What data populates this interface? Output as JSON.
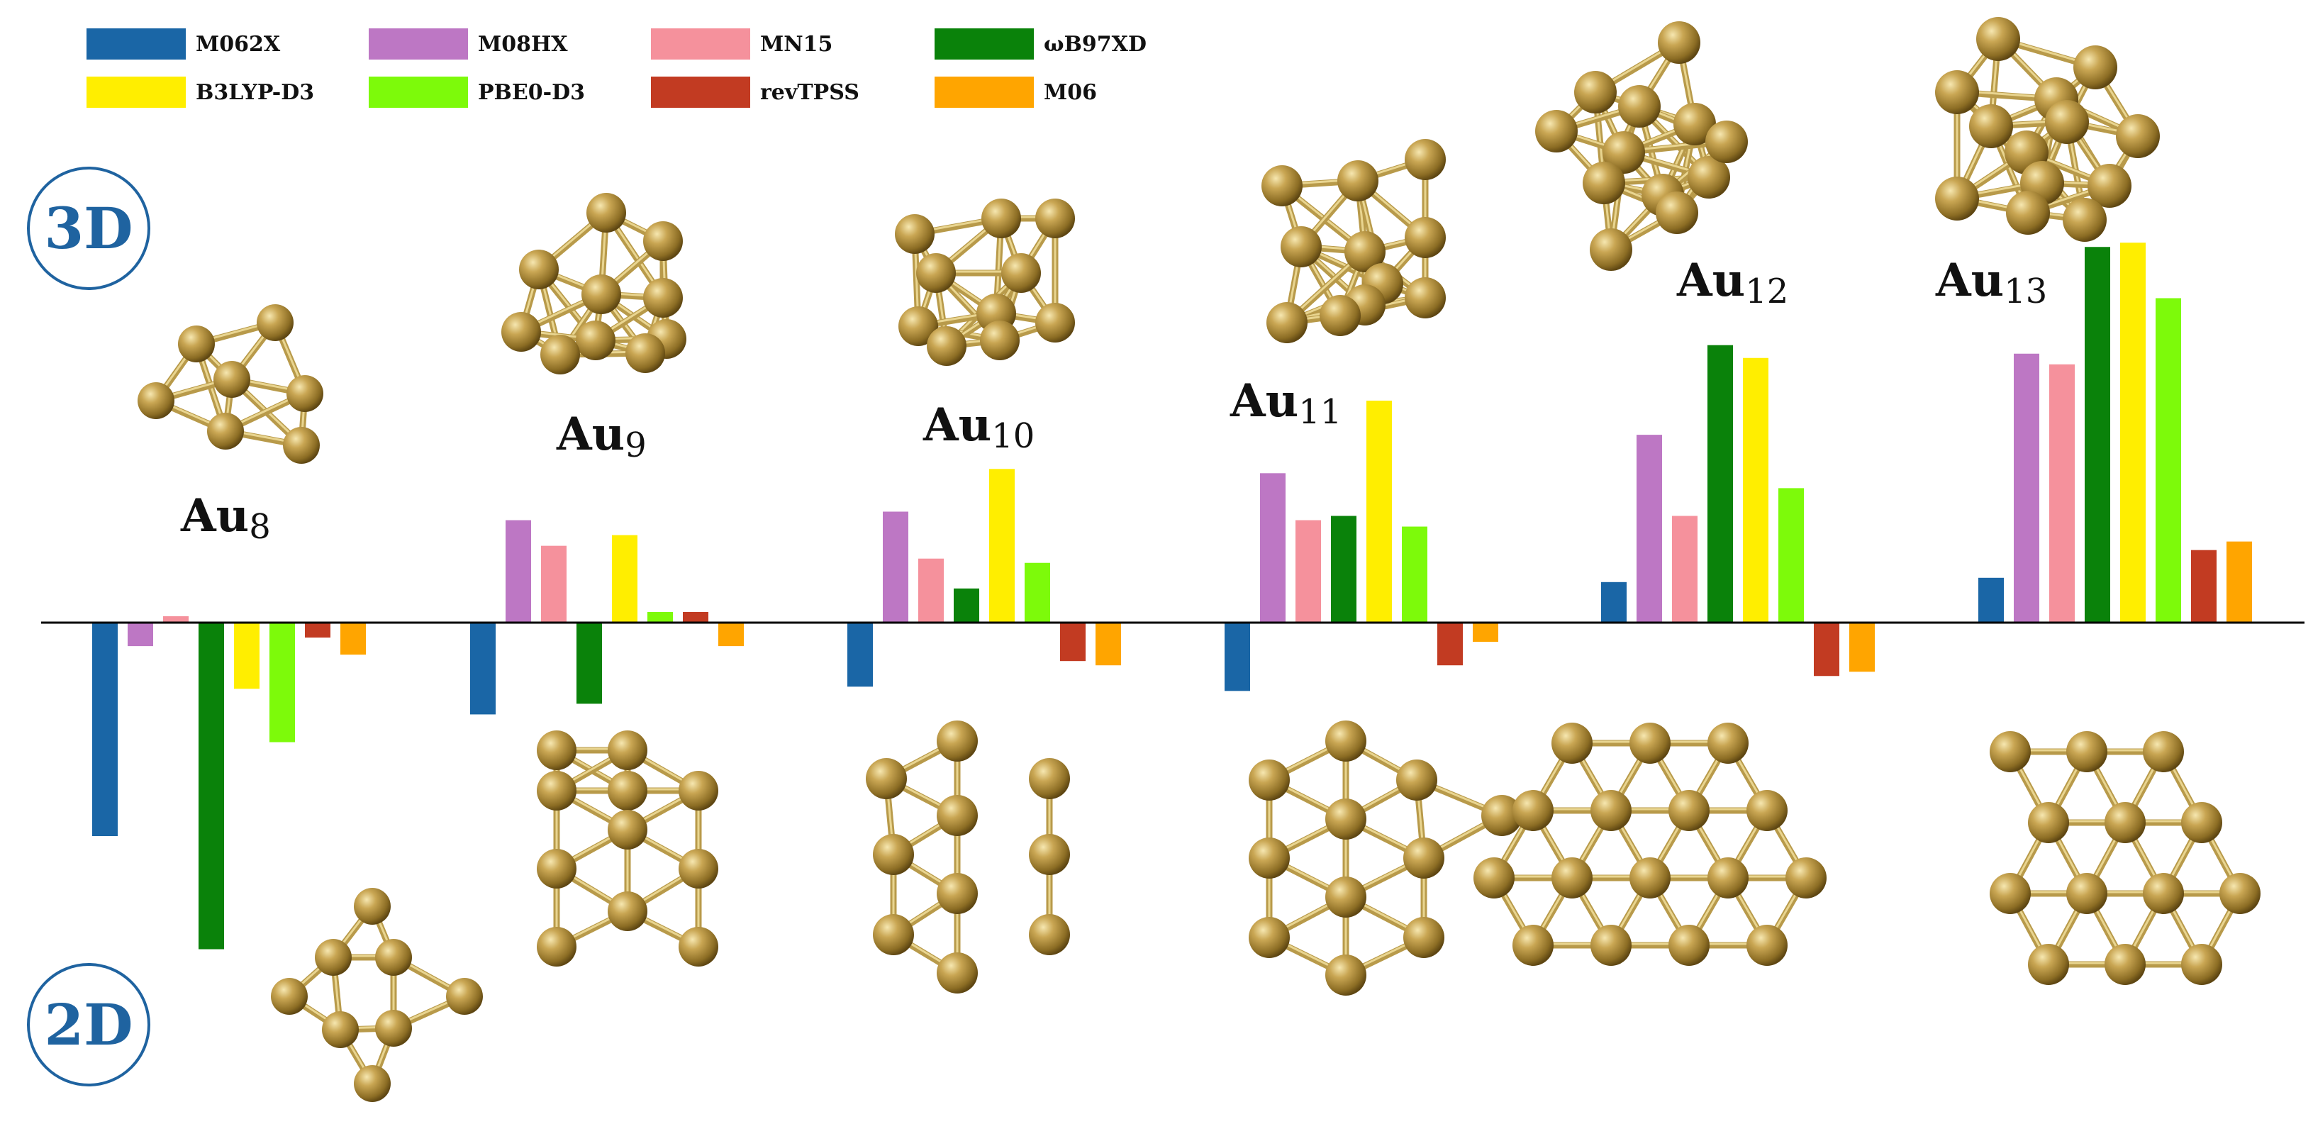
{
  "chart_data": {
    "type": "bar",
    "title": "",
    "xlabel": "",
    "ylabel": "",
    "ylim": [
      -1.5,
      2.75
    ],
    "grid": false,
    "legend_position": "top",
    "clusters": [
      {
        "symbol": "Au",
        "size": "8"
      },
      {
        "symbol": "Au",
        "size": "9"
      },
      {
        "symbol": "Au",
        "size": "10"
      },
      {
        "symbol": "Au",
        "size": "11"
      },
      {
        "symbol": "Au",
        "size": "12"
      },
      {
        "symbol": "Au",
        "size": "13"
      }
    ],
    "series": [
      {
        "name": "M062X",
        "color": "#1a66a6",
        "values": [
          -1.0,
          -0.43,
          -0.3,
          -0.32,
          0.19,
          0.21
        ]
      },
      {
        "name": "M08HX",
        "color": "#bd77c4",
        "values": [
          -0.11,
          0.48,
          0.52,
          0.7,
          0.88,
          1.26
        ]
      },
      {
        "name": "MN15",
        "color": "#f5919c",
        "values": [
          0.03,
          0.36,
          0.3,
          0.48,
          0.5,
          1.21
        ]
      },
      {
        "name": "ωB97XD",
        "color": "#0a820a",
        "values": [
          -1.53,
          -0.38,
          0.16,
          0.5,
          1.3,
          1.76
        ]
      },
      {
        "name": "B3LYP-D3",
        "color": "#ffee00",
        "values": [
          -0.31,
          0.41,
          0.72,
          1.04,
          1.24,
          1.78
        ]
      },
      {
        "name": "PBE0-D3",
        "color": "#7dfa0a",
        "values": [
          -0.56,
          0.05,
          0.28,
          0.45,
          0.63,
          1.52
        ]
      },
      {
        "name": "revTPSS",
        "color": "#c23b22",
        "values": [
          -0.07,
          0.05,
          -0.18,
          -0.2,
          -0.25,
          0.34
        ]
      },
      {
        "name": "M06",
        "color": "#ffa500",
        "values": [
          -0.15,
          -0.11,
          -0.2,
          -0.09,
          -0.23,
          0.38
        ]
      }
    ]
  },
  "labels": {
    "top_badge": "3D",
    "bottom_badge": "2D"
  },
  "structure_icons": [
    "gold-3d-cluster-icon",
    "gold-2d-cluster-icon"
  ],
  "atom_color": "#a88a3a"
}
